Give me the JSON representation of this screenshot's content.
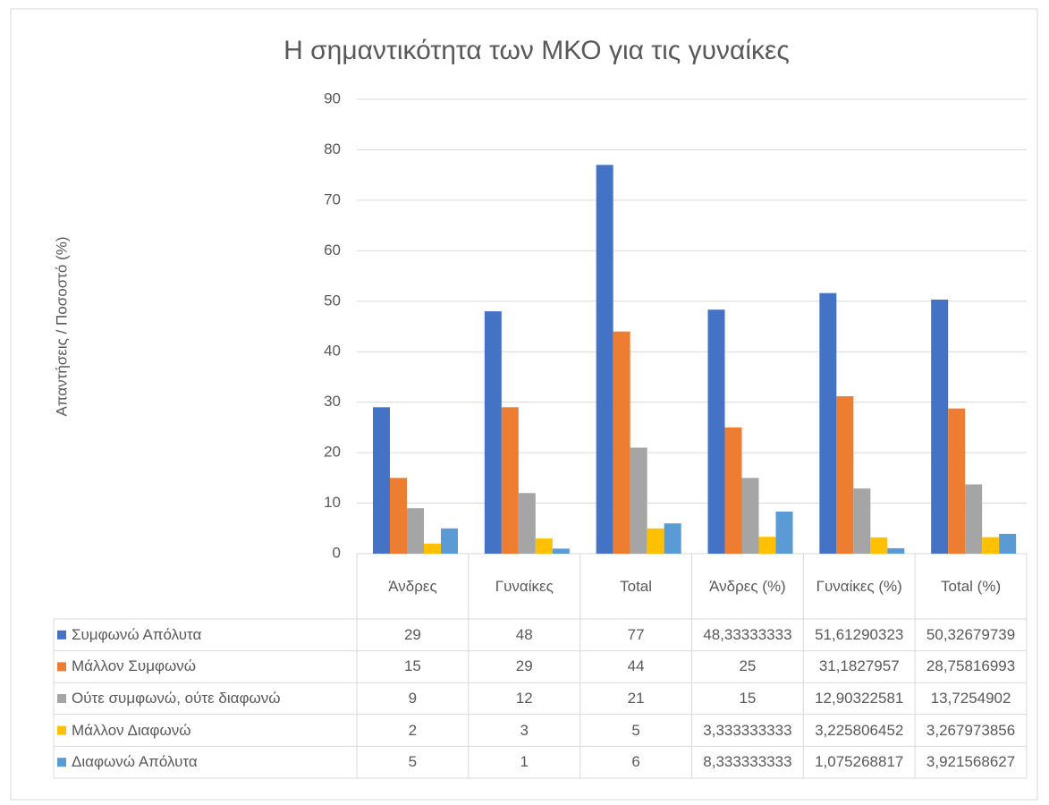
{
  "chart_data": {
    "type": "bar",
    "title": "Η σημαντικότητα των ΜΚΟ για τις γυναίκες",
    "y_label": "Απαντήσεις / Ποσοστό (%)",
    "categories": [
      "Άνδρες",
      "Γυναίκες",
      "Total",
      "Άνδρες (%)",
      "Γυναίκες (%)",
      "Total (%)"
    ],
    "series": [
      {
        "name": "Συμφωνώ Απόλυτα",
        "color": "#4472c4",
        "values": [
          29,
          48,
          77,
          48.33333333,
          51.61290323,
          50.32679739
        ],
        "value_labels": [
          "29",
          "48",
          "77",
          "48,33333333",
          "51,61290323",
          "50,32679739"
        ]
      },
      {
        "name": "Μάλλον Συμφωνώ",
        "color": "#ed7d31",
        "values": [
          15,
          29,
          44,
          25,
          31.1827957,
          28.75816993
        ],
        "value_labels": [
          "15",
          "29",
          "44",
          "25",
          "31,1827957",
          "28,75816993"
        ]
      },
      {
        "name": "Ούτε συμφωνώ, ούτε διαφωνώ",
        "color": "#a5a5a5",
        "values": [
          9,
          12,
          21,
          15,
          12.90322581,
          13.7254902
        ],
        "value_labels": [
          "9",
          "12",
          "21",
          "15",
          "12,90322581",
          "13,7254902"
        ]
      },
      {
        "name": "Μάλλον Διαφωνώ",
        "color": "#ffc000",
        "values": [
          2,
          3,
          5,
          3.333333333,
          3.225806452,
          3.267973856
        ],
        "value_labels": [
          "2",
          "3",
          "5",
          "3,333333333",
          "3,225806452",
          "3,267973856"
        ]
      },
      {
        "name": "Διαφωνώ Απόλυτα",
        "color": "#5b9bd5",
        "values": [
          5,
          1,
          6,
          8.333333333,
          1.075268817,
          3.921568627
        ],
        "value_labels": [
          "5",
          "1",
          "6",
          "8,333333333",
          "1,075268817",
          "3,921568627"
        ]
      }
    ],
    "ylim": [
      0,
      90
    ],
    "yticks": [
      0,
      10,
      20,
      30,
      40,
      50,
      60,
      70,
      80,
      90
    ],
    "grid": true
  }
}
